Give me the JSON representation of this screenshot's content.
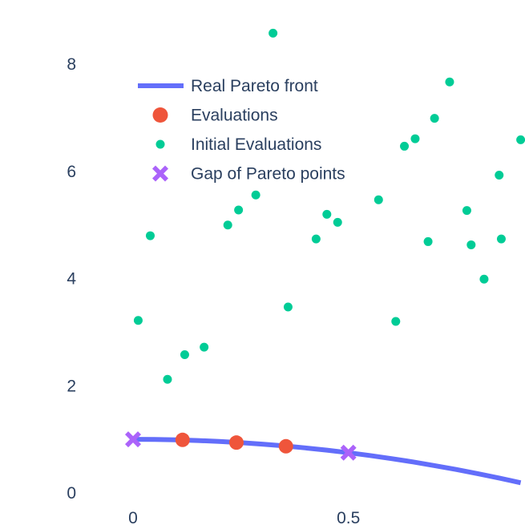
{
  "chart_data": {
    "type": "scatter",
    "title": "",
    "xlabel": "",
    "ylabel": "",
    "xlim": [
      -0.16,
      0.91
    ],
    "ylim": [
      -0.15,
      8.75
    ],
    "x_ticks": [
      0,
      0.5
    ],
    "x_tick_labels": [
      "0",
      "0.5"
    ],
    "y_ticks": [
      0,
      2,
      4,
      6,
      8
    ],
    "y_tick_labels": [
      "0",
      "2",
      "4",
      "6",
      "8"
    ],
    "grid": false,
    "legend_position": "top-left",
    "series": [
      {
        "name": "Real Pareto front",
        "kind": "line",
        "color": "#636efa",
        "x": [
          0,
          0.05,
          0.1,
          0.15,
          0.2,
          0.25,
          0.3,
          0.35,
          0.4,
          0.45,
          0.5,
          0.55,
          0.6,
          0.65,
          0.7,
          0.75,
          0.8,
          0.85,
          0.9
        ],
        "y": [
          1.0,
          0.998,
          0.99,
          0.978,
          0.96,
          0.938,
          0.91,
          0.878,
          0.84,
          0.798,
          0.75,
          0.698,
          0.64,
          0.578,
          0.51,
          0.438,
          0.36,
          0.278,
          0.19
        ]
      },
      {
        "name": "Evaluations",
        "kind": "markers",
        "color": "#ef553b",
        "x": [
          0.115,
          0.24,
          0.355
        ],
        "y": [
          0.99,
          0.94,
          0.87
        ]
      },
      {
        "name": "Initial Evaluations",
        "kind": "markers",
        "color": "#00cc96",
        "x": [
          0.012,
          0.04,
          0.08,
          0.12,
          0.165,
          0.22,
          0.245,
          0.285,
          0.325,
          0.36,
          0.425,
          0.45,
          0.475,
          0.57,
          0.61,
          0.63,
          0.655,
          0.685,
          0.7,
          0.735,
          0.775,
          0.785,
          0.815,
          0.85,
          0.855,
          0.9
        ],
        "y": [
          3.22,
          4.8,
          2.12,
          2.58,
          2.72,
          5.0,
          5.28,
          5.56,
          8.58,
          3.47,
          4.74,
          5.2,
          5.05,
          5.47,
          3.2,
          6.47,
          6.61,
          4.69,
          6.99,
          7.67,
          5.27,
          4.63,
          3.99,
          5.93,
          4.74,
          6.59
        ]
      },
      {
        "name": "Gap of Pareto points",
        "kind": "markers",
        "color": "#ab63fa",
        "x": [
          0,
          0.5
        ],
        "y": [
          1.0,
          0.75
        ]
      }
    ]
  }
}
